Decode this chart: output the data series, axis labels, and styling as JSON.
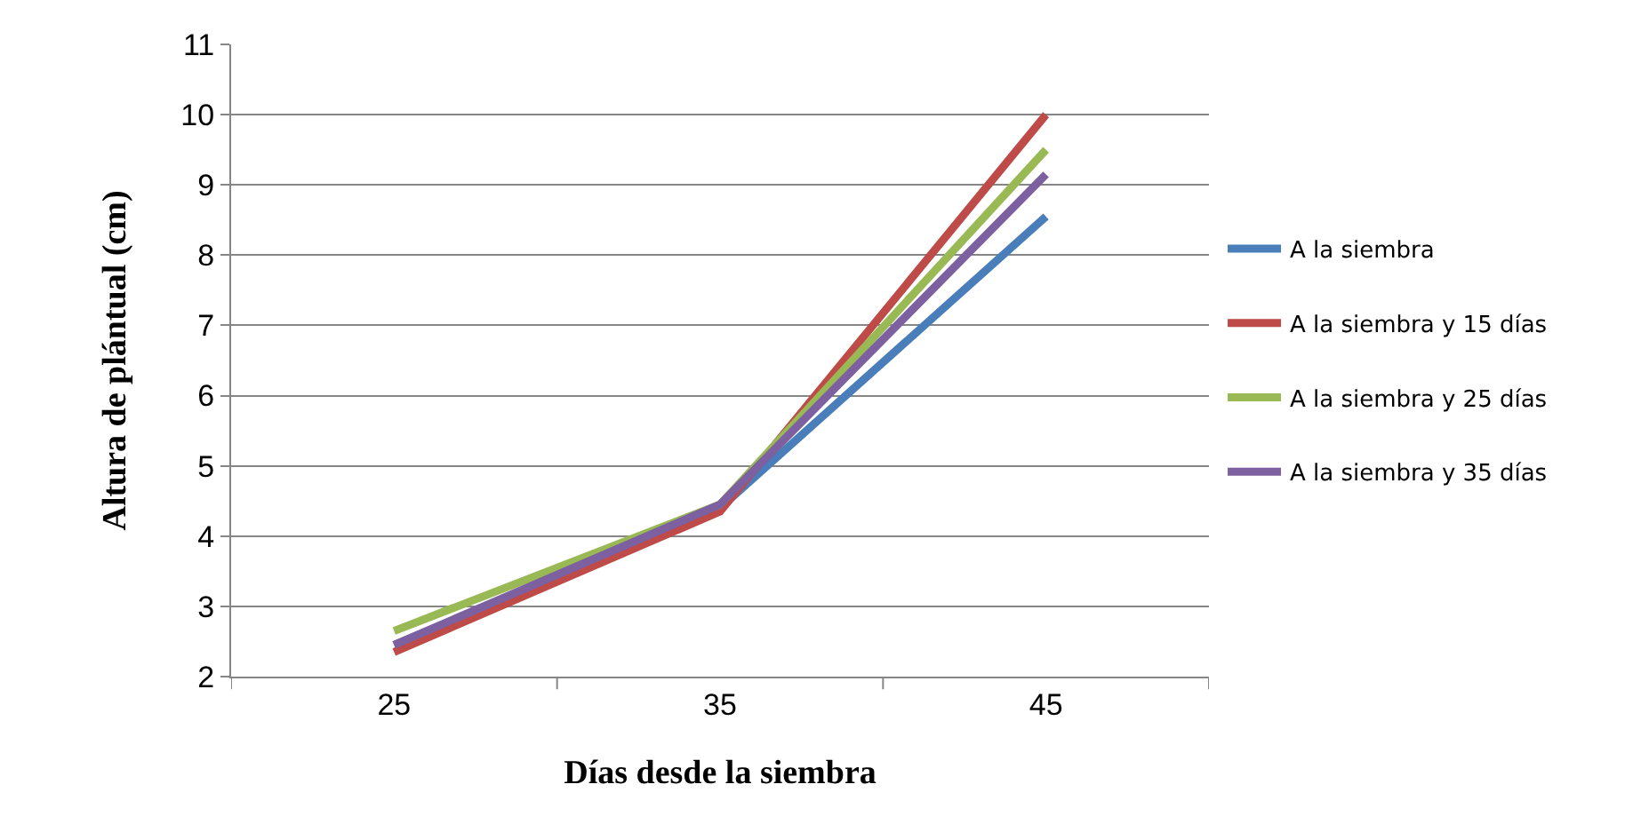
{
  "chart_data": {
    "type": "line",
    "xlabel": "Días desde la siembra",
    "ylabel": "Altura de plántual (cm)",
    "categories": [
      "25",
      "35",
      "45"
    ],
    "ylim": [
      2,
      11
    ],
    "yticks": [
      2,
      3,
      4,
      5,
      6,
      7,
      8,
      9,
      10,
      11
    ],
    "grid": "y",
    "legend": "right",
    "marker": "none",
    "line_style": "solid",
    "series": [
      {
        "name": "A la siembra",
        "color": "#4a7ebb",
        "values": [
          2.45,
          4.4,
          8.55
        ]
      },
      {
        "name": "A la siembra y 15 días",
        "color": "#be4b48",
        "values": [
          2.35,
          4.35,
          10.0
        ]
      },
      {
        "name": "A la siembra y 25 días",
        "color": "#98b954",
        "values": [
          2.65,
          4.45,
          9.5
        ]
      },
      {
        "name": "A la siembra y 35 días",
        "color": "#7d60a0",
        "values": [
          2.45,
          4.45,
          9.15
        ]
      }
    ]
  }
}
